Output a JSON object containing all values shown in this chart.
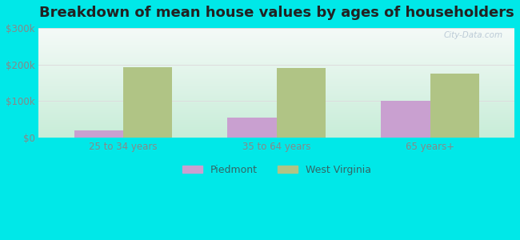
{
  "title": "Breakdown of mean house values by ages of householders",
  "categories": [
    "25 to 34 years",
    "35 to 64 years",
    "65 years+"
  ],
  "piedmont_values": [
    20000,
    55000,
    102000
  ],
  "wv_values": [
    193000,
    191000,
    175000
  ],
  "ylim": [
    0,
    300000
  ],
  "ytick_values": [
    0,
    100000,
    200000,
    300000
  ],
  "ytick_labels": [
    "$0",
    "$100k",
    "$200k",
    "$300k"
  ],
  "piedmont_color": "#c9a0d0",
  "wv_color": "#b0c485",
  "background_color": "#00e8e8",
  "plot_bg_top": "#eef8f4",
  "plot_bg_bottom": "#d8f0e4",
  "title_fontsize": 13,
  "tick_label_color": "#888888",
  "legend_labels": [
    "Piedmont",
    "West Virginia"
  ],
  "bar_width": 0.32,
  "watermark": "City-Data.com",
  "grid_color": "#dddddd",
  "legend_text_color": "#336666"
}
